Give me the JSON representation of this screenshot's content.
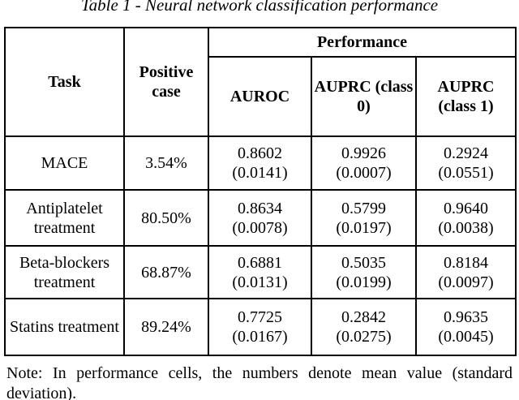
{
  "colors": {
    "background": "#ffffff",
    "text": "#000000",
    "border": "#000000"
  },
  "caption": "Table 1 - Neural network classification performance",
  "table": {
    "header": {
      "task": "Task",
      "positive_case": "Positive case",
      "performance": "Performance",
      "auroc": "AUROC",
      "auprc_class0": "AUPRC (class 0)",
      "auprc_class1": "AUPRC (class 1)"
    },
    "rows": [
      {
        "task": "MACE",
        "positive_case": "3.54%",
        "auroc": {
          "mean": "0.8602",
          "std": "(0.0141)"
        },
        "auprc_class0": {
          "mean": "0.9926",
          "std": "(0.0007)"
        },
        "auprc_class1": {
          "mean": "0.2924",
          "std": "(0.0551)"
        }
      },
      {
        "task": "Antiplatelet treatment",
        "positive_case": "80.50%",
        "auroc": {
          "mean": "0.8634",
          "std": "(0.0078)"
        },
        "auprc_class0": {
          "mean": "0.5799",
          "std": "(0.0197)"
        },
        "auprc_class1": {
          "mean": "0.9640",
          "std": "(0.0038)"
        }
      },
      {
        "task": "Beta-blockers treatment",
        "positive_case": "68.87%",
        "auroc": {
          "mean": "0.6881",
          "std": "(0.0131)"
        },
        "auprc_class0": {
          "mean": "0.5035",
          "std": "(0.0199)"
        },
        "auprc_class1": {
          "mean": "0.8184",
          "std": "(0.0097)"
        }
      },
      {
        "task": "Statins treatment",
        "positive_case": "89.24%",
        "auroc": {
          "mean": "0.7725",
          "std": "(0.0167)"
        },
        "auprc_class0": {
          "mean": "0.2842",
          "std": "(0.0275)"
        },
        "auprc_class1": {
          "mean": "0.9635",
          "std": "(0.0045)"
        }
      }
    ]
  },
  "note": "Note: In performance cells, the numbers denote mean value (standard deviation).",
  "chart_data": {
    "type": "table",
    "title": "Table 1 - Neural network classification performance",
    "columns": [
      "Task",
      "Positive case",
      "AUROC",
      "AUPRC (class 0)",
      "AUPRC (class 1)"
    ],
    "rows": [
      [
        "MACE",
        "3.54%",
        "0.8602 (0.0141)",
        "0.9926 (0.0007)",
        "0.2924 (0.0551)"
      ],
      [
        "Antiplatelet treatment",
        "80.50%",
        "0.8634 (0.0078)",
        "0.5799 (0.0197)",
        "0.9640 (0.0038)"
      ],
      [
        "Beta-blockers treatment",
        "68.87%",
        "0.6881 (0.0131)",
        "0.5035 (0.0199)",
        "0.8184 (0.0097)"
      ],
      [
        "Statins treatment",
        "89.24%",
        "0.7725 (0.0167)",
        "0.2842 (0.0275)",
        "0.9635 (0.0045)"
      ]
    ],
    "note": "In performance cells, the numbers denote mean value (standard deviation)."
  }
}
